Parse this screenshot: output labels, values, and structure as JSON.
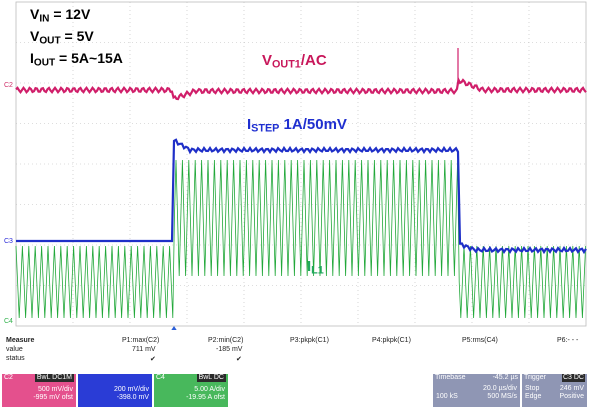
{
  "annotations": {
    "vin": "V",
    "vin_sub": "IN",
    "vin_val": " = 12V",
    "vout": "V",
    "vout_sub": "OUT",
    "vout_val": " = 5V",
    "iout": "I",
    "iout_sub": "OUT",
    "iout_val": " = 5A~15A",
    "vout1": "V",
    "vout1_sub": "OUT1",
    "vout1_val": "/AC",
    "istep": "I",
    "istep_sub": "STEP",
    "istep_val": " 1A/50mV",
    "il1": "I",
    "il1_sub": "L1"
  },
  "channel_markers": {
    "c2": "C2",
    "c3": "C3",
    "c4": "C4"
  },
  "measure": {
    "title": "Measure",
    "row_value": "value",
    "row_status": "status",
    "p1": {
      "label": "P1:max(C2)",
      "value": "711 mV",
      "status": "✔"
    },
    "p2": {
      "label": "P2:min(C2)",
      "value": "-185 mV",
      "status": "✔"
    },
    "p3": {
      "label": "P3:pkpk(C1)"
    },
    "p4": {
      "label": "P4:pkpk(C1)"
    },
    "p5": {
      "label": "P5:rms(C4)"
    },
    "p6": {
      "label": "P6:- - -"
    }
  },
  "channels": {
    "c2": {
      "tag": "C2",
      "badge": "BwL DC1M",
      "scale": "500 mV/div",
      "offset": "-995 mV ofst",
      "color": "#d0306a"
    },
    "c3": {
      "scale": "200 mV/div",
      "offset": "-398.0 mV",
      "color": "#2b2bd8"
    },
    "c4": {
      "tag": "C4",
      "badge": "BwL DC",
      "scale": "5.00 A/div",
      "offset": "-19.95 A ofst",
      "color": "#2fb24a"
    }
  },
  "timebase": {
    "label": "Timebase",
    "delay": "-45.2 µs",
    "per_div": "20.0 µs/div",
    "samples": "100 kS",
    "rate": "500 MS/s"
  },
  "trigger": {
    "label": "Trigger",
    "badge": "C3 DC",
    "mode": "Stop",
    "level": "246 mV",
    "type": "Edge",
    "slope": "Positive"
  },
  "colors": {
    "grid": "#bcbcbc",
    "vout": "#d01f6a",
    "istep": "#1f2fc8",
    "il1": "#22a83a"
  }
}
